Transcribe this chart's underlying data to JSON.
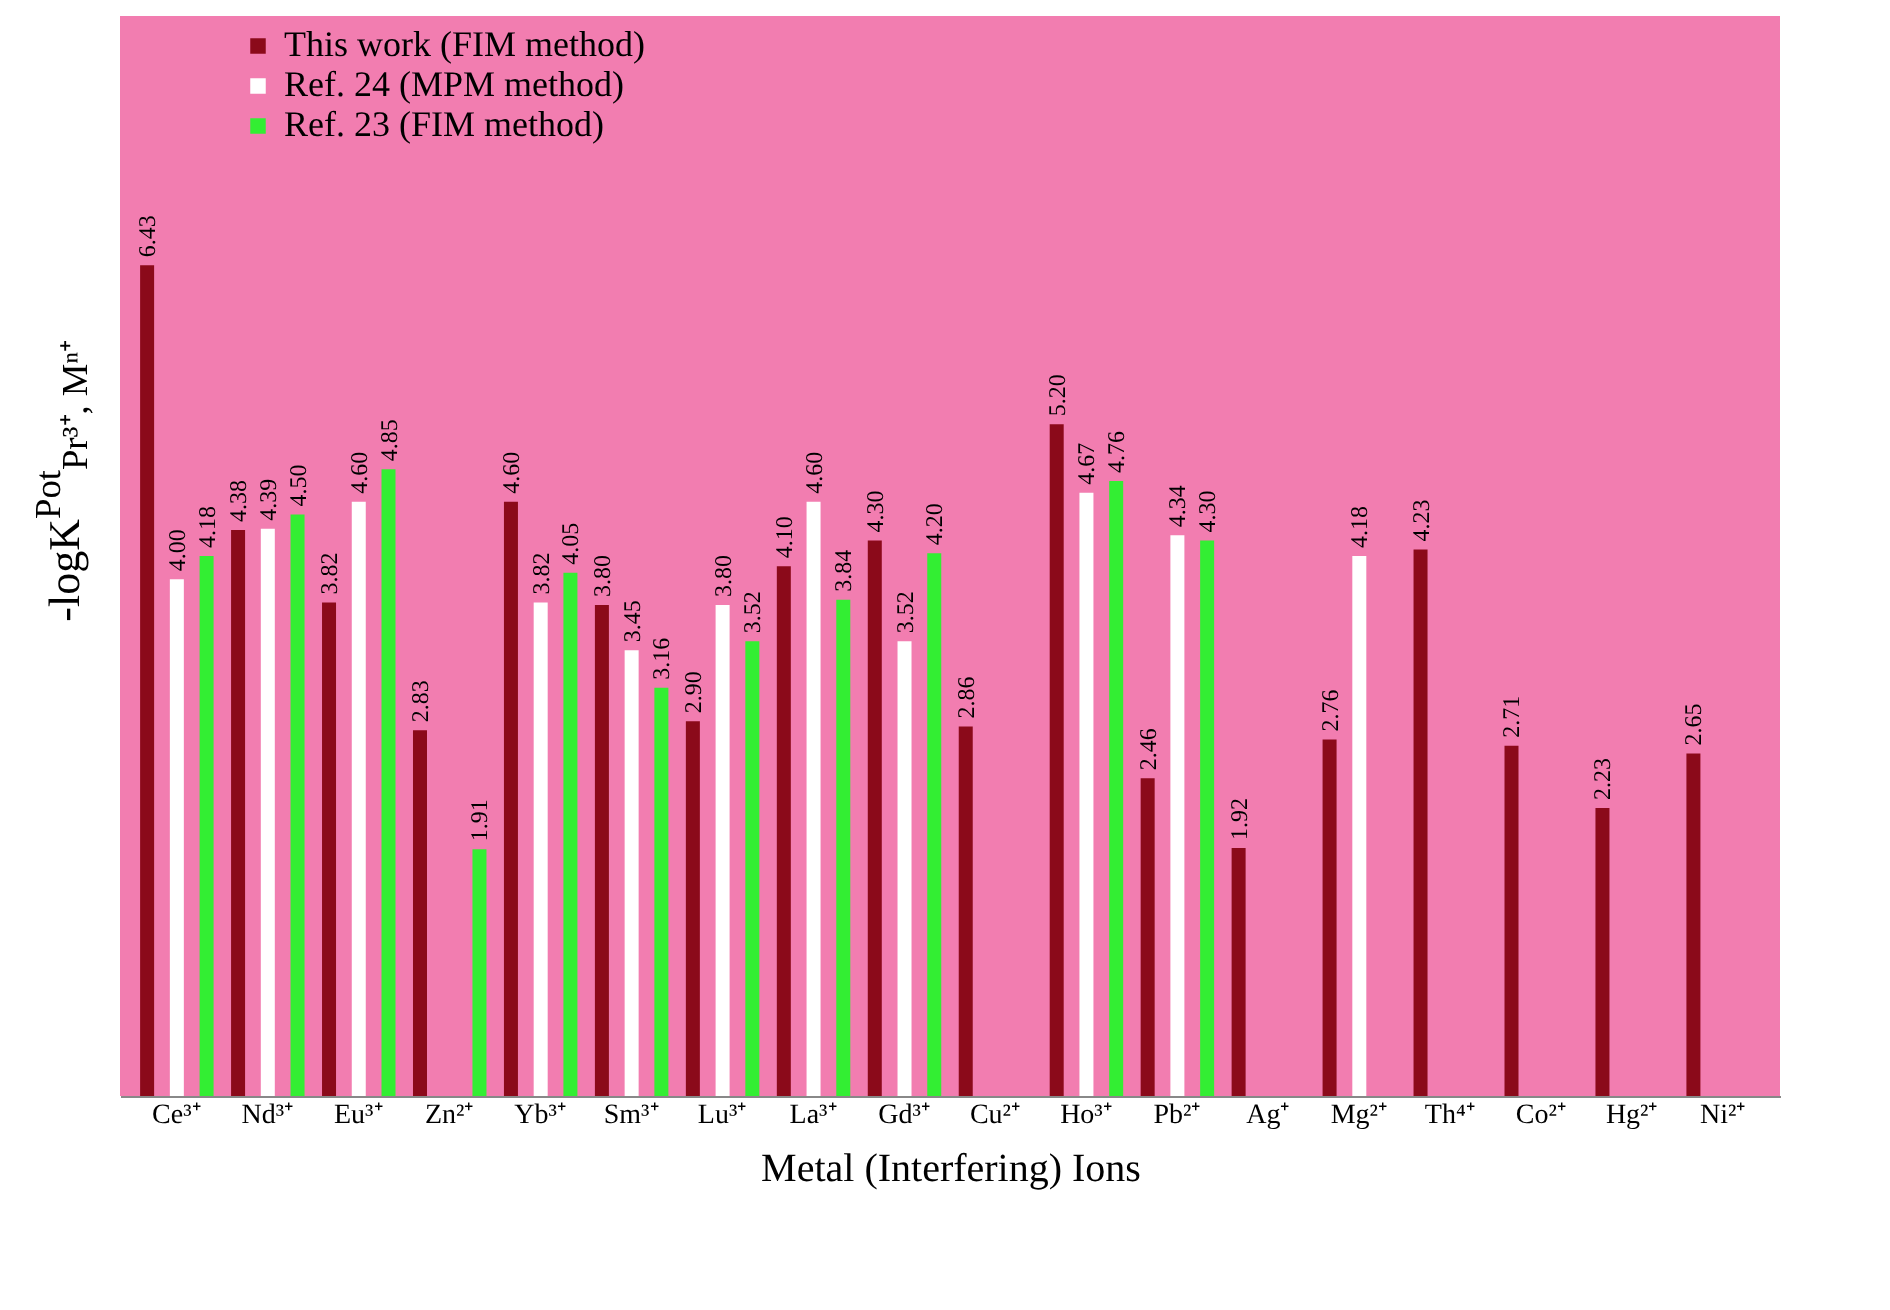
{
  "chart_data": {
    "type": "bar",
    "xlabel": "Metal (Interfering) Ions",
    "ylabel": "-logK$^{Pot}$$_{Pr³⁺, Mⁿ⁺}$",
    "categories": [
      "Ce³⁺",
      "Nd³⁺",
      "Eu³⁺",
      "Zn²⁺",
      "Yb³⁺",
      "Sm³⁺",
      "Lu³⁺",
      "La³⁺",
      "Gd³⁺",
      "Cu²⁺",
      "Ho³⁺",
      "Pb²⁺",
      "Ag⁺",
      "Mg²⁺",
      "Th⁴⁺",
      "Co²⁺",
      "Hg²⁺",
      "Ni²⁺"
    ],
    "series": [
      {
        "name": "This work (FIM method)",
        "color": "#8b0a1a",
        "values": [
          6.43,
          4.38,
          3.82,
          2.83,
          4.6,
          3.8,
          2.9,
          4.1,
          4.3,
          2.86,
          5.2,
          2.46,
          1.92,
          2.76,
          4.23,
          2.71,
          2.23,
          2.65
        ],
        "value_labels": [
          "6.43",
          "4.38",
          "3.82",
          "2.83",
          "4.60",
          "3.80",
          "2.90",
          "4.10",
          "4.30",
          "2.86",
          "5.20",
          "2.46",
          "1.92",
          "2.76",
          "4.23",
          "2.71",
          "2.23",
          "2.65"
        ]
      },
      {
        "name": "Ref. 24 (MPM method)",
        "color": "#ffffff",
        "values": [
          4.0,
          4.39,
          4.6,
          null,
          3.82,
          3.45,
          3.8,
          4.6,
          3.52,
          null,
          4.67,
          4.34,
          null,
          4.18,
          null,
          null,
          null,
          null
        ],
        "value_labels": [
          "4.00",
          "4.39",
          "4.60",
          null,
          "3.82",
          "3.45",
          "3.80",
          "4.60",
          "3.52",
          null,
          "4.67",
          "4.34",
          null,
          "4.18",
          null,
          null,
          null,
          null
        ]
      },
      {
        "name": "Ref. 23 (FIM method)",
        "color": "#33ee33",
        "values": [
          4.18,
          4.5,
          4.85,
          1.91,
          4.05,
          3.16,
          3.52,
          3.84,
          4.2,
          null,
          4.76,
          4.3,
          null,
          null,
          null,
          null,
          null,
          null
        ],
        "value_labels": [
          "4.18",
          "4.50",
          "4.85",
          "1.91",
          "4.05",
          "3.16",
          "3.52",
          "3.84",
          "4.20",
          null,
          "4.76",
          "4.30",
          null,
          null,
          null,
          null,
          null,
          null
        ]
      }
    ],
    "legend": "top left",
    "grid": false,
    "tick_labels": "x"
  }
}
